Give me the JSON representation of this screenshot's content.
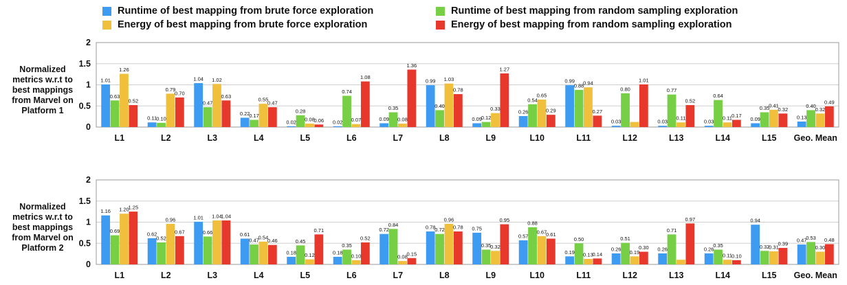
{
  "legend": [
    {
      "label": "Runtime of best mapping from brute force exploration",
      "color": "#3d9bf2"
    },
    {
      "label": "Energy of best mapping from brute force exploration",
      "color": "#f0bf3c"
    },
    {
      "label": "Runtime of best mapping from random sampling exploration",
      "color": "#76cf45"
    },
    {
      "label": "Energy of best mapping from random sampling exploration",
      "color": "#e8382b"
    }
  ],
  "chart_data": [
    {
      "type": "bar",
      "ylabel": "Normalized metrics w.r.t to best mappings from Marvel on Platform 1",
      "ylim": [
        0,
        2
      ],
      "yticks": [
        "0",
        "0.5",
        "1",
        "1.5",
        "2"
      ],
      "grid": true,
      "categories": [
        "L1",
        "L2",
        "L3",
        "L4",
        "L5",
        "L6",
        "L7",
        "L8",
        "L9",
        "L10",
        "L11",
        "L12",
        "L13",
        "L14",
        "L15",
        "Geo. Mean"
      ],
      "series": [
        {
          "name": "Runtime of best mapping from brute force exploration",
          "color": "#3d9bf2",
          "values": [
            1.01,
            0.11,
            1.04,
            0.22,
            0.02,
            0.02,
            0.09,
            0.99,
            0.09,
            0.26,
            0.99,
            0.03,
            0.03,
            0.03,
            0.09,
            0.13
          ]
        },
        {
          "name": "Runtime of best mapping from random sampling exploration",
          "color": "#76cf45",
          "values": [
            0.63,
            0.1,
            0.47,
            0.17,
            0.28,
            0.74,
            0.35,
            0.4,
            0.12,
            0.54,
            0.88,
            0.8,
            0.77,
            0.64,
            0.35,
            0.4
          ]
        },
        {
          "name": "Energy of best mapping from brute force exploration",
          "color": "#f0bf3c",
          "values": [
            1.26,
            0.79,
            1.02,
            0.55,
            0.08,
            0.07,
            0.08,
            1.03,
            0.33,
            0.65,
            0.94,
            0.12,
            0.11,
            0.11,
            0.41,
            0.32
          ]
        },
        {
          "name": "Energy of best mapping from random sampling exploration",
          "color": "#e8382b",
          "values": [
            0.52,
            0.7,
            0.63,
            0.47,
            0.06,
            1.08,
            1.36,
            0.78,
            1.27,
            0.29,
            0.27,
            1.01,
            0.52,
            0.17,
            0.32,
            0.49
          ]
        }
      ],
      "data_labels": [
        [
          "1.01",
          "0.11",
          "1.04",
          "0.22",
          "0.02",
          "0.02",
          "0.09",
          "0.99",
          "0.09",
          "0.26",
          "0.99",
          "0.03",
          "0.03",
          "0.03",
          "0.09",
          "0.13"
        ],
        [
          "0.63",
          "0.10",
          "0.47",
          "0.17",
          "0.28",
          "0.74",
          "0.35",
          "0.40",
          "0.12",
          "0.54",
          "0.88",
          "0.80",
          "0.77",
          "0.64",
          "0.35",
          "0.40"
        ],
        [
          "1.26",
          "0.79",
          "1.02",
          "0.55",
          "0.08",
          "0.07",
          "0.08",
          "1.03",
          "0.33",
          "0.65",
          "0.94",
          "",
          "0.11",
          "0.11",
          "0.41",
          "0.32"
        ],
        [
          "0.52",
          "0.70",
          "0.63",
          "0.47",
          "0.06",
          "1.08",
          "1.36",
          "0.78",
          "1.27",
          "0.29",
          "0.27",
          "1.01",
          "0.52",
          "0.17",
          "0.32",
          "0.49"
        ]
      ]
    },
    {
      "type": "bar",
      "ylabel": "Normalized metrics w.r.t to best mappings from Marvel on Platform 2",
      "ylim": [
        0,
        2
      ],
      "yticks": [
        "0",
        "0.5",
        "1",
        "1.5",
        "2"
      ],
      "grid": true,
      "categories": [
        "L1",
        "L2",
        "L3",
        "L4",
        "L5",
        "L6",
        "L7",
        "L8",
        "L9",
        "L10",
        "L11",
        "L12",
        "L13",
        "L14",
        "L15",
        "Geo. Mean"
      ],
      "series": [
        {
          "name": "Runtime of best mapping from brute force exploration",
          "color": "#3d9bf2",
          "values": [
            1.16,
            0.62,
            1.01,
            0.61,
            0.18,
            0.18,
            0.72,
            0.78,
            0.75,
            0.57,
            0.19,
            0.26,
            0.26,
            0.26,
            0.94,
            0.47
          ]
        },
        {
          "name": "Runtime of best mapping from random sampling exploration",
          "color": "#76cf45",
          "values": [
            0.69,
            0.52,
            0.66,
            0.47,
            0.45,
            0.35,
            0.84,
            0.72,
            0.35,
            0.88,
            0.5,
            0.51,
            0.71,
            0.35,
            0.32,
            0.53
          ]
        },
        {
          "name": "Energy of best mapping from brute force exploration",
          "color": "#f0bf3c",
          "values": [
            1.2,
            0.96,
            1.04,
            0.54,
            0.12,
            0.1,
            0.08,
            0.96,
            0.32,
            0.67,
            0.13,
            0.19,
            0.11,
            0.11,
            0.31,
            0.3
          ]
        },
        {
          "name": "Energy of best mapping from random sampling exploration",
          "color": "#e8382b",
          "values": [
            1.25,
            0.67,
            1.04,
            0.46,
            0.71,
            0.52,
            0.15,
            0.78,
            0.95,
            0.61,
            0.14,
            0.3,
            0.97,
            0.1,
            0.39,
            0.48
          ]
        }
      ],
      "data_labels": [
        [
          "1.16",
          "0.62",
          "1.01",
          "0.61",
          "0.18",
          "0.18",
          "0.72",
          "0.78",
          "0.75",
          "0.57",
          "0.19",
          "0.26",
          "0.26",
          "0.26",
          "0.94",
          "0.47"
        ],
        [
          "0.69",
          "0.52",
          "0.66",
          "0.47",
          "0.45",
          "0.35",
          "0.84",
          "0.72",
          "0.35",
          "0.88",
          "0.50",
          "0.51",
          "0.71",
          "0.35",
          "0.32",
          "0.53"
        ],
        [
          "1.20",
          "0.96",
          "1.04",
          "0.54",
          "0.12",
          "0.10",
          "0.08",
          "0.96",
          "0.32",
          "0.67",
          "0.13",
          "0.19",
          "",
          "0.11",
          "0.31",
          "0.30"
        ],
        [
          "1.25",
          "0.67",
          "1.04",
          "0.46",
          "0.71",
          "0.52",
          "0.15",
          "0.78",
          "0.95",
          "0.61",
          "0.14",
          "0.30",
          "0.97",
          "0.10",
          "0.39",
          "0.48"
        ]
      ]
    }
  ]
}
